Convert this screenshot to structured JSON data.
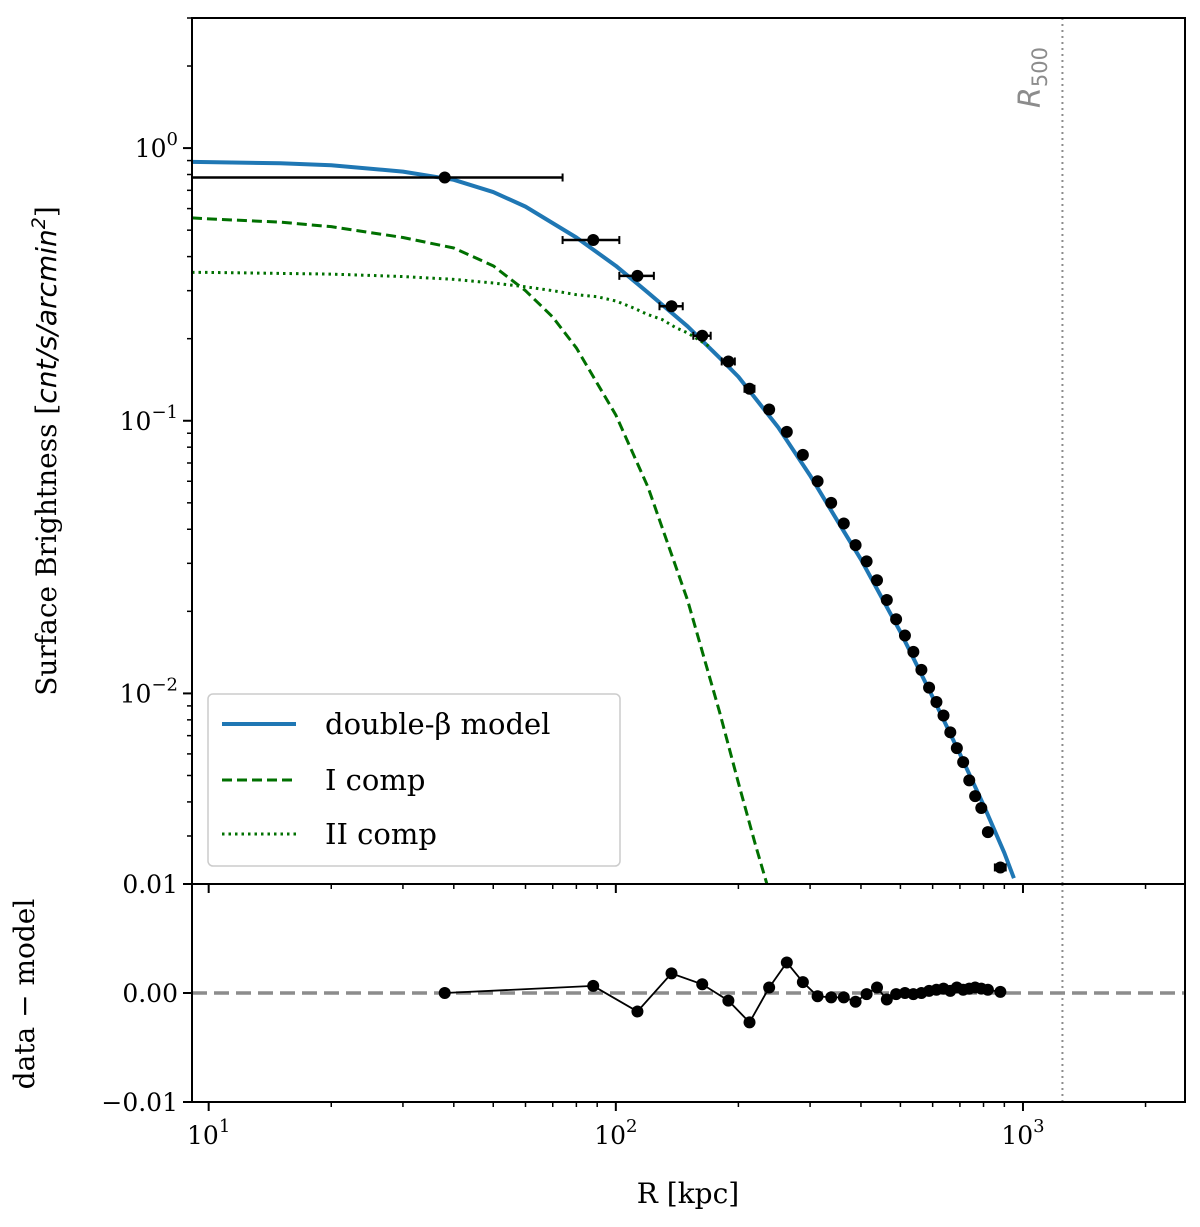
{
  "chart_data": [
    {
      "type": "line",
      "panel": "main",
      "title": "",
      "xlabel": "R [kpc]",
      "ylabel_prefix": "Surface Brightness [",
      "ylabel_unit": "cnt/s/arcmin",
      "ylabel_unit_power": "2",
      "ylabel_suffix": "]",
      "xscale": "log",
      "yscale": "log",
      "xlim": [
        9.1,
        2500
      ],
      "ylim": [
        0.002,
        3.0
      ],
      "xticks": [
        {
          "value": 10,
          "base": "10",
          "exp": "1"
        },
        {
          "value": 100,
          "base": "10",
          "exp": "2"
        },
        {
          "value": 1000,
          "base": "10",
          "exp": "3"
        }
      ],
      "yticks": [
        {
          "value": 1,
          "base": "10",
          "exp": "0"
        },
        {
          "value": 0.1,
          "base": "10",
          "exp": "−1"
        },
        {
          "value": 0.01,
          "base": "10",
          "exp": "−2"
        }
      ],
      "legend_position": "lower-left",
      "series": [
        {
          "name": "double-β model",
          "style": "solid",
          "color": "#1f77b4",
          "x": [
            9.1,
            10,
            15,
            20,
            30,
            40,
            50,
            60,
            80,
            100,
            120,
            150,
            180,
            200,
            250,
            300,
            350,
            400,
            500,
            600,
            700,
            800,
            900,
            950
          ],
          "y": [
            0.89,
            0.888,
            0.88,
            0.865,
            0.82,
            0.765,
            0.69,
            0.61,
            0.47,
            0.37,
            0.295,
            0.222,
            0.17,
            0.145,
            0.095,
            0.063,
            0.043,
            0.031,
            0.0168,
            0.0097,
            0.006,
            0.0039,
            0.0026,
            0.0021
          ]
        },
        {
          "name": "I comp",
          "style": "dashed",
          "color": "#007000",
          "x": [
            9.1,
            10,
            15,
            20,
            30,
            40,
            50,
            60,
            70,
            80,
            100,
            120,
            150,
            180,
            200,
            220,
            235
          ],
          "y": [
            0.555,
            0.55,
            0.535,
            0.515,
            0.47,
            0.43,
            0.37,
            0.3,
            0.24,
            0.185,
            0.105,
            0.057,
            0.022,
            0.0085,
            0.0047,
            0.0028,
            0.002
          ]
        },
        {
          "name": "II comp",
          "style": "dotted",
          "color": "#007000",
          "x": [
            9.1,
            10,
            20,
            30,
            40,
            50,
            60,
            70,
            80,
            90,
            100,
            110,
            120,
            130,
            140,
            150,
            160,
            170
          ],
          "y": [
            0.35,
            0.35,
            0.345,
            0.338,
            0.33,
            0.32,
            0.31,
            0.3,
            0.29,
            0.285,
            0.275,
            0.26,
            0.245,
            0.235,
            0.22,
            0.21,
            0.198,
            0.187
          ]
        },
        {
          "name": "data",
          "style": "points",
          "color": "#000000",
          "x": [
            38,
            88,
            113,
            137,
            163,
            189,
            213,
            238,
            263,
            288,
            313,
            338,
            363,
            388,
            413,
            438,
            463,
            488,
            513,
            538,
            563,
            588,
            613,
            638,
            663,
            688,
            713,
            738,
            763,
            790,
            820,
            880
          ],
          "y": [
            0.78,
            0.46,
            0.34,
            0.263,
            0.205,
            0.165,
            0.131,
            0.11,
            0.091,
            0.075,
            0.06,
            0.05,
            0.042,
            0.035,
            0.0305,
            0.026,
            0.022,
            0.0187,
            0.0163,
            0.0142,
            0.0122,
            0.0105,
            0.0093,
            0.0083,
            0.0072,
            0.0063,
            0.0056,
            0.0048,
            0.0042,
            0.0038,
            0.0031,
            0.0023
          ],
          "xerr_low": [
            38,
            14,
            11,
            9,
            8,
            7,
            6,
            5,
            4,
            4,
            3,
            3,
            3,
            3,
            3,
            3,
            3,
            3,
            3,
            3,
            3,
            3,
            3,
            3,
            3,
            3,
            3,
            3,
            3,
            3,
            16,
            27
          ],
          "xerr_high": [
            36,
            14,
            11,
            9,
            8,
            7,
            6,
            5,
            4,
            4,
            3,
            3,
            3,
            3,
            3,
            3,
            3,
            3,
            3,
            3,
            3,
            3,
            3,
            3,
            3,
            3,
            3,
            3,
            3,
            3,
            16,
            27
          ]
        }
      ],
      "vline": {
        "x": 1250,
        "label_base": "R",
        "label_sub": "500",
        "color": "#8c8c8c",
        "style": "dotted"
      }
    },
    {
      "type": "line",
      "panel": "residuals",
      "xlabel": "R [kpc]",
      "ylabel": "data − model",
      "xscale": "log",
      "yscale": "linear",
      "xlim": [
        9.1,
        2500
      ],
      "ylim": [
        -0.01,
        0.01
      ],
      "yticks": [
        {
          "value": 0.01,
          "label": "0.01"
        },
        {
          "value": 0.0,
          "label": "0.00"
        },
        {
          "value": -0.01,
          "label": "−0.01"
        }
      ],
      "zero_line": {
        "y": 0,
        "color": "#8c8c8c",
        "style": "dashed"
      },
      "series": [
        {
          "name": "residuals",
          "color": "#000000",
          "x": [
            38,
            88,
            113,
            137,
            163,
            189,
            213,
            238,
            263,
            288,
            313,
            338,
            363,
            388,
            413,
            438,
            463,
            488,
            513,
            538,
            563,
            588,
            613,
            638,
            663,
            688,
            713,
            738,
            763,
            790,
            820,
            880
          ],
          "y": [
            0.0,
            0.00065,
            -0.0017,
            0.0018,
            0.0008,
            -0.0007,
            -0.0027,
            0.0005,
            0.0028,
            0.001,
            -0.0003,
            -0.0004,
            -0.0004,
            -0.0008,
            -0.0001,
            0.0005,
            -0.0006,
            -0.0001,
            0.0,
            -0.0001,
            0.0,
            0.0002,
            0.0003,
            0.0004,
            0.0002,
            0.0005,
            0.0003,
            0.0004,
            0.0005,
            0.0004,
            0.0003,
            0.0001
          ]
        }
      ]
    }
  ]
}
